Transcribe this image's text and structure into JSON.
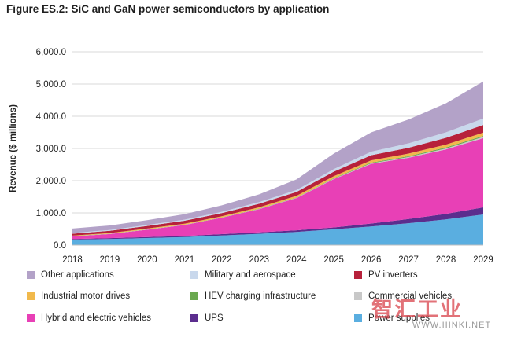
{
  "figure_title": "Figure ES.2: SiC and GaN power semiconductors by application",
  "watermark": {
    "brand": "智汇工业",
    "url": "WWW.IIINKI.NET"
  },
  "chart_data": {
    "type": "area",
    "stacked": true,
    "title": "Figure ES.2: SiC and GaN power semiconductors by application",
    "xlabel": "",
    "ylabel": "Revenue ($ millions)",
    "ylim": [
      0,
      6000
    ],
    "yticks": [
      "0.0",
      "1,000.0",
      "2,000.0",
      "3,000.0",
      "4,000.0",
      "5,000.0",
      "6,000.0"
    ],
    "yticks_values": [
      0,
      1000,
      2000,
      3000,
      4000,
      5000,
      6000
    ],
    "x": [
      "2018",
      "2019",
      "2020",
      "2021",
      "2022",
      "2023",
      "2024",
      "2025",
      "2026",
      "2027",
      "2028",
      "2029"
    ],
    "grid": "horizontal",
    "legend_position": "bottom",
    "series": [
      {
        "name": "Power supplies",
        "color": "#5aaee0",
        "values": [
          170,
          190,
          220,
          250,
          300,
          350,
          410,
          490,
          580,
          680,
          800,
          950
        ]
      },
      {
        "name": "UPS",
        "color": "#5b2d8e",
        "values": [
          20,
          25,
          30,
          35,
          40,
          45,
          50,
          60,
          90,
          130,
          170,
          220
        ]
      },
      {
        "name": "Hybrid and electric vehicles",
        "color": "#e840b6",
        "values": [
          80,
          130,
          230,
          340,
          510,
          720,
          1000,
          1500,
          1850,
          1900,
          2000,
          2150
        ]
      },
      {
        "name": "Commercial vehicles",
        "color": "#c8c8c8",
        "values": [
          5,
          5,
          5,
          5,
          5,
          10,
          10,
          15,
          20,
          25,
          30,
          40
        ]
      },
      {
        "name": "HEV charging infrastructure",
        "color": "#6aa84f",
        "values": [
          5,
          5,
          5,
          5,
          5,
          10,
          10,
          15,
          20,
          25,
          30,
          30
        ]
      },
      {
        "name": "Industrial motor drives",
        "color": "#f1b94c",
        "values": [
          15,
          20,
          25,
          30,
          35,
          40,
          50,
          60,
          70,
          80,
          90,
          100
        ]
      },
      {
        "name": "PV inverters",
        "color": "#b7213b",
        "values": [
          60,
          70,
          80,
          90,
          100,
          110,
          120,
          140,
          160,
          180,
          210,
          240
        ]
      },
      {
        "name": "Military and aerospace",
        "color": "#c9d8ec",
        "values": [
          20,
          25,
          30,
          35,
          40,
          50,
          60,
          80,
          110,
          140,
          170,
          200
        ]
      },
      {
        "name": "Other applications",
        "color": "#b3a2c8",
        "values": [
          140,
          140,
          150,
          170,
          200,
          240,
          330,
          480,
          600,
          740,
          900,
          1150
        ]
      }
    ],
    "legend": [
      {
        "name": "Other applications",
        "color": "#b3a2c8"
      },
      {
        "name": "Military and aerospace",
        "color": "#c9d8ec"
      },
      {
        "name": "PV inverters",
        "color": "#b7213b"
      },
      {
        "name": "Industrial motor drives",
        "color": "#f1b94c"
      },
      {
        "name": "HEV charging infrastructure",
        "color": "#6aa84f"
      },
      {
        "name": "Commercial vehicles",
        "color": "#c8c8c8"
      },
      {
        "name": "Hybrid and electric vehicles",
        "color": "#e840b6"
      },
      {
        "name": "UPS",
        "color": "#5b2d8e"
      },
      {
        "name": "Power supplies",
        "color": "#5aaee0"
      }
    ]
  }
}
